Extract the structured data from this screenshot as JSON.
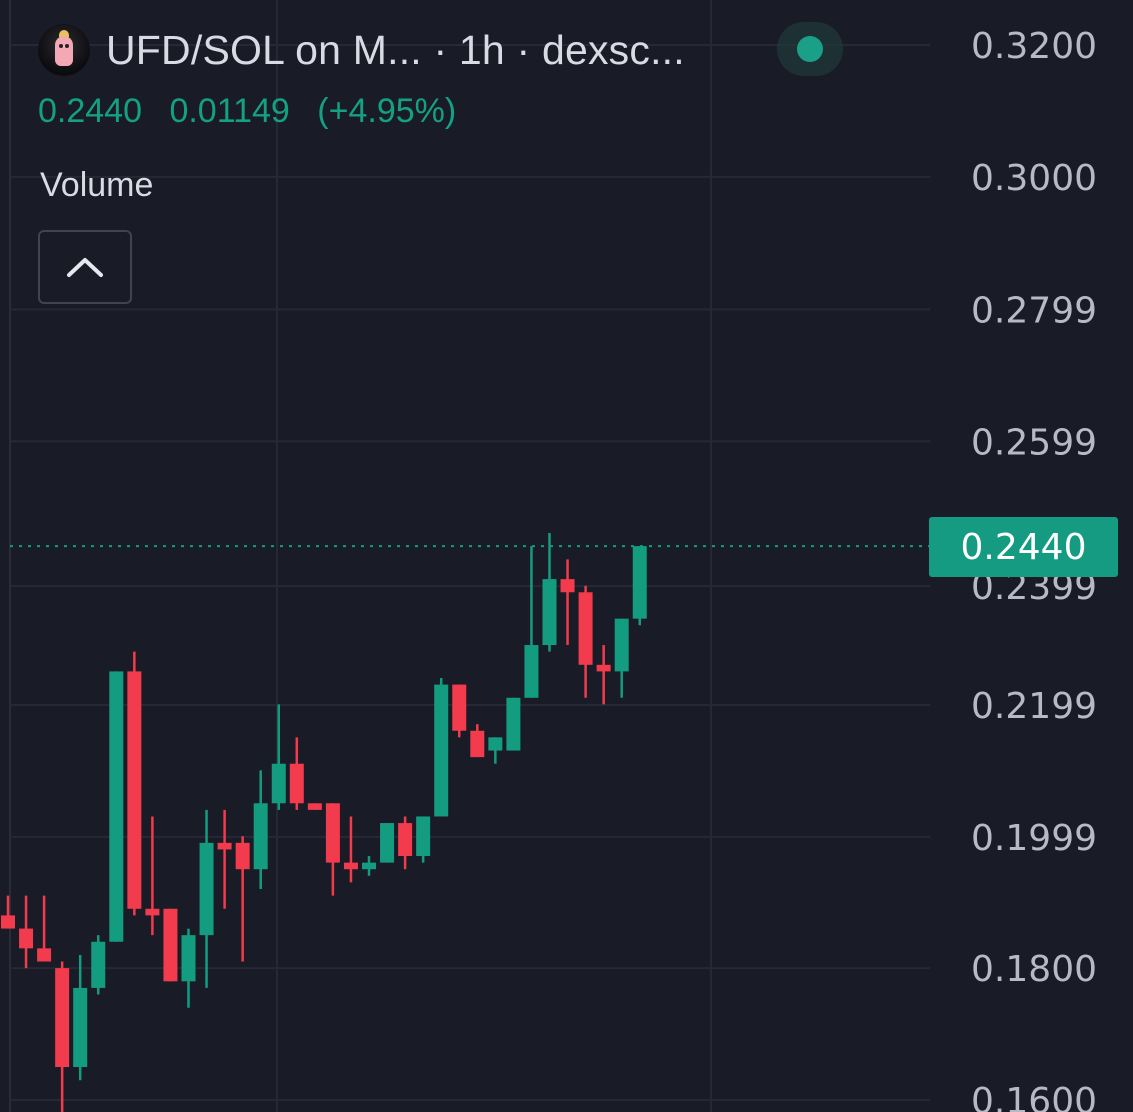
{
  "header": {
    "title": "UFD/SOL on M...  · 1h · dexsc...",
    "last_price": "0.2440",
    "change": "0.01149",
    "change_pct": "(+4.95%)",
    "live_status_color": "#1aa088"
  },
  "volume_panel": {
    "label": "Volume",
    "collapse_icon": "chevron-up-icon"
  },
  "chart_data": {
    "type": "candlestick",
    "timeframe": "1h",
    "y_ticks": [
      "0.3200",
      "0.3000",
      "0.2799",
      "0.2599",
      "0.2399",
      "0.2199",
      "0.1999",
      "0.1800",
      "0.1600"
    ],
    "ylim": [
      0.159,
      0.323
    ],
    "last_price_label": "0.2440",
    "up_color": "#139c80",
    "down_color": "#f23b4c",
    "grid": true,
    "candles": [
      {
        "o": 0.188,
        "h": 0.191,
        "l": 0.186,
        "c": 0.186
      },
      {
        "o": 0.186,
        "h": 0.191,
        "l": 0.18,
        "c": 0.183
      },
      {
        "o": 0.183,
        "h": 0.191,
        "l": 0.181,
        "c": 0.181
      },
      {
        "o": 0.18,
        "h": 0.181,
        "l": 0.158,
        "c": 0.165
      },
      {
        "o": 0.165,
        "h": 0.182,
        "l": 0.163,
        "c": 0.177
      },
      {
        "o": 0.177,
        "h": 0.185,
        "l": 0.176,
        "c": 0.184
      },
      {
        "o": 0.184,
        "h": 0.225,
        "l": 0.184,
        "c": 0.225
      },
      {
        "o": 0.225,
        "h": 0.228,
        "l": 0.188,
        "c": 0.189
      },
      {
        "o": 0.189,
        "h": 0.203,
        "l": 0.185,
        "c": 0.188
      },
      {
        "o": 0.189,
        "h": 0.189,
        "l": 0.178,
        "c": 0.178
      },
      {
        "o": 0.178,
        "h": 0.186,
        "l": 0.174,
        "c": 0.185
      },
      {
        "o": 0.185,
        "h": 0.204,
        "l": 0.177,
        "c": 0.199
      },
      {
        "o": 0.199,
        "h": 0.204,
        "l": 0.189,
        "c": 0.198
      },
      {
        "o": 0.199,
        "h": 0.2,
        "l": 0.181,
        "c": 0.195
      },
      {
        "o": 0.195,
        "h": 0.21,
        "l": 0.192,
        "c": 0.205
      },
      {
        "o": 0.205,
        "h": 0.22,
        "l": 0.204,
        "c": 0.211
      },
      {
        "o": 0.211,
        "h": 0.215,
        "l": 0.204,
        "c": 0.205
      },
      {
        "o": 0.205,
        "h": 0.205,
        "l": 0.204,
        "c": 0.204
      },
      {
        "o": 0.205,
        "h": 0.205,
        "l": 0.191,
        "c": 0.196
      },
      {
        "o": 0.196,
        "h": 0.203,
        "l": 0.193,
        "c": 0.195
      },
      {
        "o": 0.195,
        "h": 0.197,
        "l": 0.194,
        "c": 0.196
      },
      {
        "o": 0.196,
        "h": 0.202,
        "l": 0.196,
        "c": 0.202
      },
      {
        "o": 0.202,
        "h": 0.203,
        "l": 0.195,
        "c": 0.197
      },
      {
        "o": 0.197,
        "h": 0.203,
        "l": 0.196,
        "c": 0.203
      },
      {
        "o": 0.203,
        "h": 0.224,
        "l": 0.203,
        "c": 0.223
      },
      {
        "o": 0.223,
        "h": 0.223,
        "l": 0.215,
        "c": 0.216
      },
      {
        "o": 0.216,
        "h": 0.217,
        "l": 0.212,
        "c": 0.212
      },
      {
        "o": 0.213,
        "h": 0.215,
        "l": 0.211,
        "c": 0.215
      },
      {
        "o": 0.213,
        "h": 0.221,
        "l": 0.213,
        "c": 0.221
      },
      {
        "o": 0.221,
        "h": 0.244,
        "l": 0.221,
        "c": 0.229
      },
      {
        "o": 0.229,
        "h": 0.246,
        "l": 0.228,
        "c": 0.239
      },
      {
        "o": 0.239,
        "h": 0.242,
        "l": 0.229,
        "c": 0.237
      },
      {
        "o": 0.237,
        "h": 0.238,
        "l": 0.221,
        "c": 0.226
      },
      {
        "o": 0.226,
        "h": 0.229,
        "l": 0.22,
        "c": 0.225
      },
      {
        "o": 0.225,
        "h": 0.233,
        "l": 0.221,
        "c": 0.233
      },
      {
        "o": 0.233,
        "h": 0.244,
        "l": 0.232,
        "c": 0.244
      }
    ]
  }
}
